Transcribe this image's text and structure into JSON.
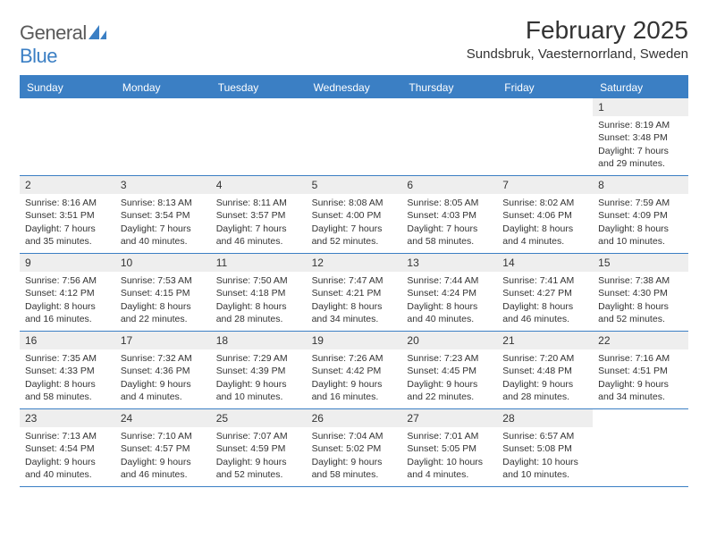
{
  "logo": {
    "text_gray": "General",
    "text_blue": "Blue"
  },
  "header": {
    "month_title": "February 2025",
    "location": "Sundsbruk, Vaesternorrland, Sweden"
  },
  "colors": {
    "accent": "#3b7fc4",
    "header_bg": "#eeeeee",
    "text": "#333333",
    "background": "#ffffff"
  },
  "daynames": [
    "Sunday",
    "Monday",
    "Tuesday",
    "Wednesday",
    "Thursday",
    "Friday",
    "Saturday"
  ],
  "weeks": [
    [
      null,
      null,
      null,
      null,
      null,
      null,
      {
        "day": "1",
        "sunrise": "Sunrise: 8:19 AM",
        "sunset": "Sunset: 3:48 PM",
        "daylight": "Daylight: 7 hours and 29 minutes."
      }
    ],
    [
      {
        "day": "2",
        "sunrise": "Sunrise: 8:16 AM",
        "sunset": "Sunset: 3:51 PM",
        "daylight": "Daylight: 7 hours and 35 minutes."
      },
      {
        "day": "3",
        "sunrise": "Sunrise: 8:13 AM",
        "sunset": "Sunset: 3:54 PM",
        "daylight": "Daylight: 7 hours and 40 minutes."
      },
      {
        "day": "4",
        "sunrise": "Sunrise: 8:11 AM",
        "sunset": "Sunset: 3:57 PM",
        "daylight": "Daylight: 7 hours and 46 minutes."
      },
      {
        "day": "5",
        "sunrise": "Sunrise: 8:08 AM",
        "sunset": "Sunset: 4:00 PM",
        "daylight": "Daylight: 7 hours and 52 minutes."
      },
      {
        "day": "6",
        "sunrise": "Sunrise: 8:05 AM",
        "sunset": "Sunset: 4:03 PM",
        "daylight": "Daylight: 7 hours and 58 minutes."
      },
      {
        "day": "7",
        "sunrise": "Sunrise: 8:02 AM",
        "sunset": "Sunset: 4:06 PM",
        "daylight": "Daylight: 8 hours and 4 minutes."
      },
      {
        "day": "8",
        "sunrise": "Sunrise: 7:59 AM",
        "sunset": "Sunset: 4:09 PM",
        "daylight": "Daylight: 8 hours and 10 minutes."
      }
    ],
    [
      {
        "day": "9",
        "sunrise": "Sunrise: 7:56 AM",
        "sunset": "Sunset: 4:12 PM",
        "daylight": "Daylight: 8 hours and 16 minutes."
      },
      {
        "day": "10",
        "sunrise": "Sunrise: 7:53 AM",
        "sunset": "Sunset: 4:15 PM",
        "daylight": "Daylight: 8 hours and 22 minutes."
      },
      {
        "day": "11",
        "sunrise": "Sunrise: 7:50 AM",
        "sunset": "Sunset: 4:18 PM",
        "daylight": "Daylight: 8 hours and 28 minutes."
      },
      {
        "day": "12",
        "sunrise": "Sunrise: 7:47 AM",
        "sunset": "Sunset: 4:21 PM",
        "daylight": "Daylight: 8 hours and 34 minutes."
      },
      {
        "day": "13",
        "sunrise": "Sunrise: 7:44 AM",
        "sunset": "Sunset: 4:24 PM",
        "daylight": "Daylight: 8 hours and 40 minutes."
      },
      {
        "day": "14",
        "sunrise": "Sunrise: 7:41 AM",
        "sunset": "Sunset: 4:27 PM",
        "daylight": "Daylight: 8 hours and 46 minutes."
      },
      {
        "day": "15",
        "sunrise": "Sunrise: 7:38 AM",
        "sunset": "Sunset: 4:30 PM",
        "daylight": "Daylight: 8 hours and 52 minutes."
      }
    ],
    [
      {
        "day": "16",
        "sunrise": "Sunrise: 7:35 AM",
        "sunset": "Sunset: 4:33 PM",
        "daylight": "Daylight: 8 hours and 58 minutes."
      },
      {
        "day": "17",
        "sunrise": "Sunrise: 7:32 AM",
        "sunset": "Sunset: 4:36 PM",
        "daylight": "Daylight: 9 hours and 4 minutes."
      },
      {
        "day": "18",
        "sunrise": "Sunrise: 7:29 AM",
        "sunset": "Sunset: 4:39 PM",
        "daylight": "Daylight: 9 hours and 10 minutes."
      },
      {
        "day": "19",
        "sunrise": "Sunrise: 7:26 AM",
        "sunset": "Sunset: 4:42 PM",
        "daylight": "Daylight: 9 hours and 16 minutes."
      },
      {
        "day": "20",
        "sunrise": "Sunrise: 7:23 AM",
        "sunset": "Sunset: 4:45 PM",
        "daylight": "Daylight: 9 hours and 22 minutes."
      },
      {
        "day": "21",
        "sunrise": "Sunrise: 7:20 AM",
        "sunset": "Sunset: 4:48 PM",
        "daylight": "Daylight: 9 hours and 28 minutes."
      },
      {
        "day": "22",
        "sunrise": "Sunrise: 7:16 AM",
        "sunset": "Sunset: 4:51 PM",
        "daylight": "Daylight: 9 hours and 34 minutes."
      }
    ],
    [
      {
        "day": "23",
        "sunrise": "Sunrise: 7:13 AM",
        "sunset": "Sunset: 4:54 PM",
        "daylight": "Daylight: 9 hours and 40 minutes."
      },
      {
        "day": "24",
        "sunrise": "Sunrise: 7:10 AM",
        "sunset": "Sunset: 4:57 PM",
        "daylight": "Daylight: 9 hours and 46 minutes."
      },
      {
        "day": "25",
        "sunrise": "Sunrise: 7:07 AM",
        "sunset": "Sunset: 4:59 PM",
        "daylight": "Daylight: 9 hours and 52 minutes."
      },
      {
        "day": "26",
        "sunrise": "Sunrise: 7:04 AM",
        "sunset": "Sunset: 5:02 PM",
        "daylight": "Daylight: 9 hours and 58 minutes."
      },
      {
        "day": "27",
        "sunrise": "Sunrise: 7:01 AM",
        "sunset": "Sunset: 5:05 PM",
        "daylight": "Daylight: 10 hours and 4 minutes."
      },
      {
        "day": "28",
        "sunrise": "Sunrise: 6:57 AM",
        "sunset": "Sunset: 5:08 PM",
        "daylight": "Daylight: 10 hours and 10 minutes."
      },
      null
    ]
  ]
}
